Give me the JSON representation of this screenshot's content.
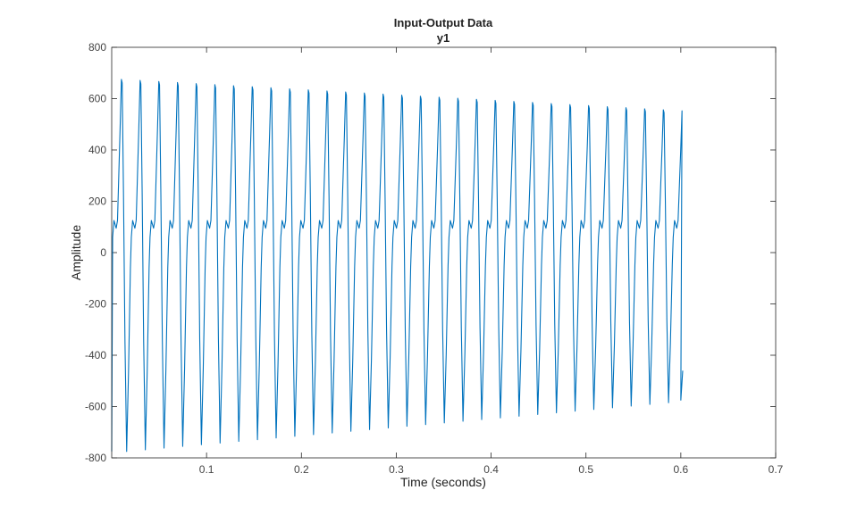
{
  "chart_data": {
    "type": "line",
    "title": "Input-Output Data",
    "subtitle": "y1",
    "xlabel": "Time (seconds)",
    "ylabel": "Amplitude",
    "xlim": [
      0,
      0.7
    ],
    "ylim": [
      -800,
      800
    ],
    "x_ticks": [
      0.1,
      0.2,
      0.3,
      0.4,
      0.5,
      0.6,
      0.7
    ],
    "x_tick_labels": [
      "0.1",
      "0.2",
      "0.3",
      "0.4",
      "0.5",
      "0.6",
      "0.7"
    ],
    "y_ticks": [
      800,
      600,
      400,
      200,
      0,
      -200,
      -400,
      -600,
      -800
    ],
    "y_tick_labels": [
      "800",
      "600",
      "400",
      "200",
      "0",
      "-200",
      "-400",
      "-600",
      "-800"
    ],
    "grid": false,
    "series_color": "#0072BD",
    "signal": {
      "x_start": 0,
      "x_end": 0.602,
      "period": 0.0197,
      "peak_start": 675,
      "peak_end": 550,
      "trough_start": -775,
      "trough_end": -575,
      "plateau_high": 125,
      "plateau_low": 95,
      "final_value": -460
    }
  }
}
